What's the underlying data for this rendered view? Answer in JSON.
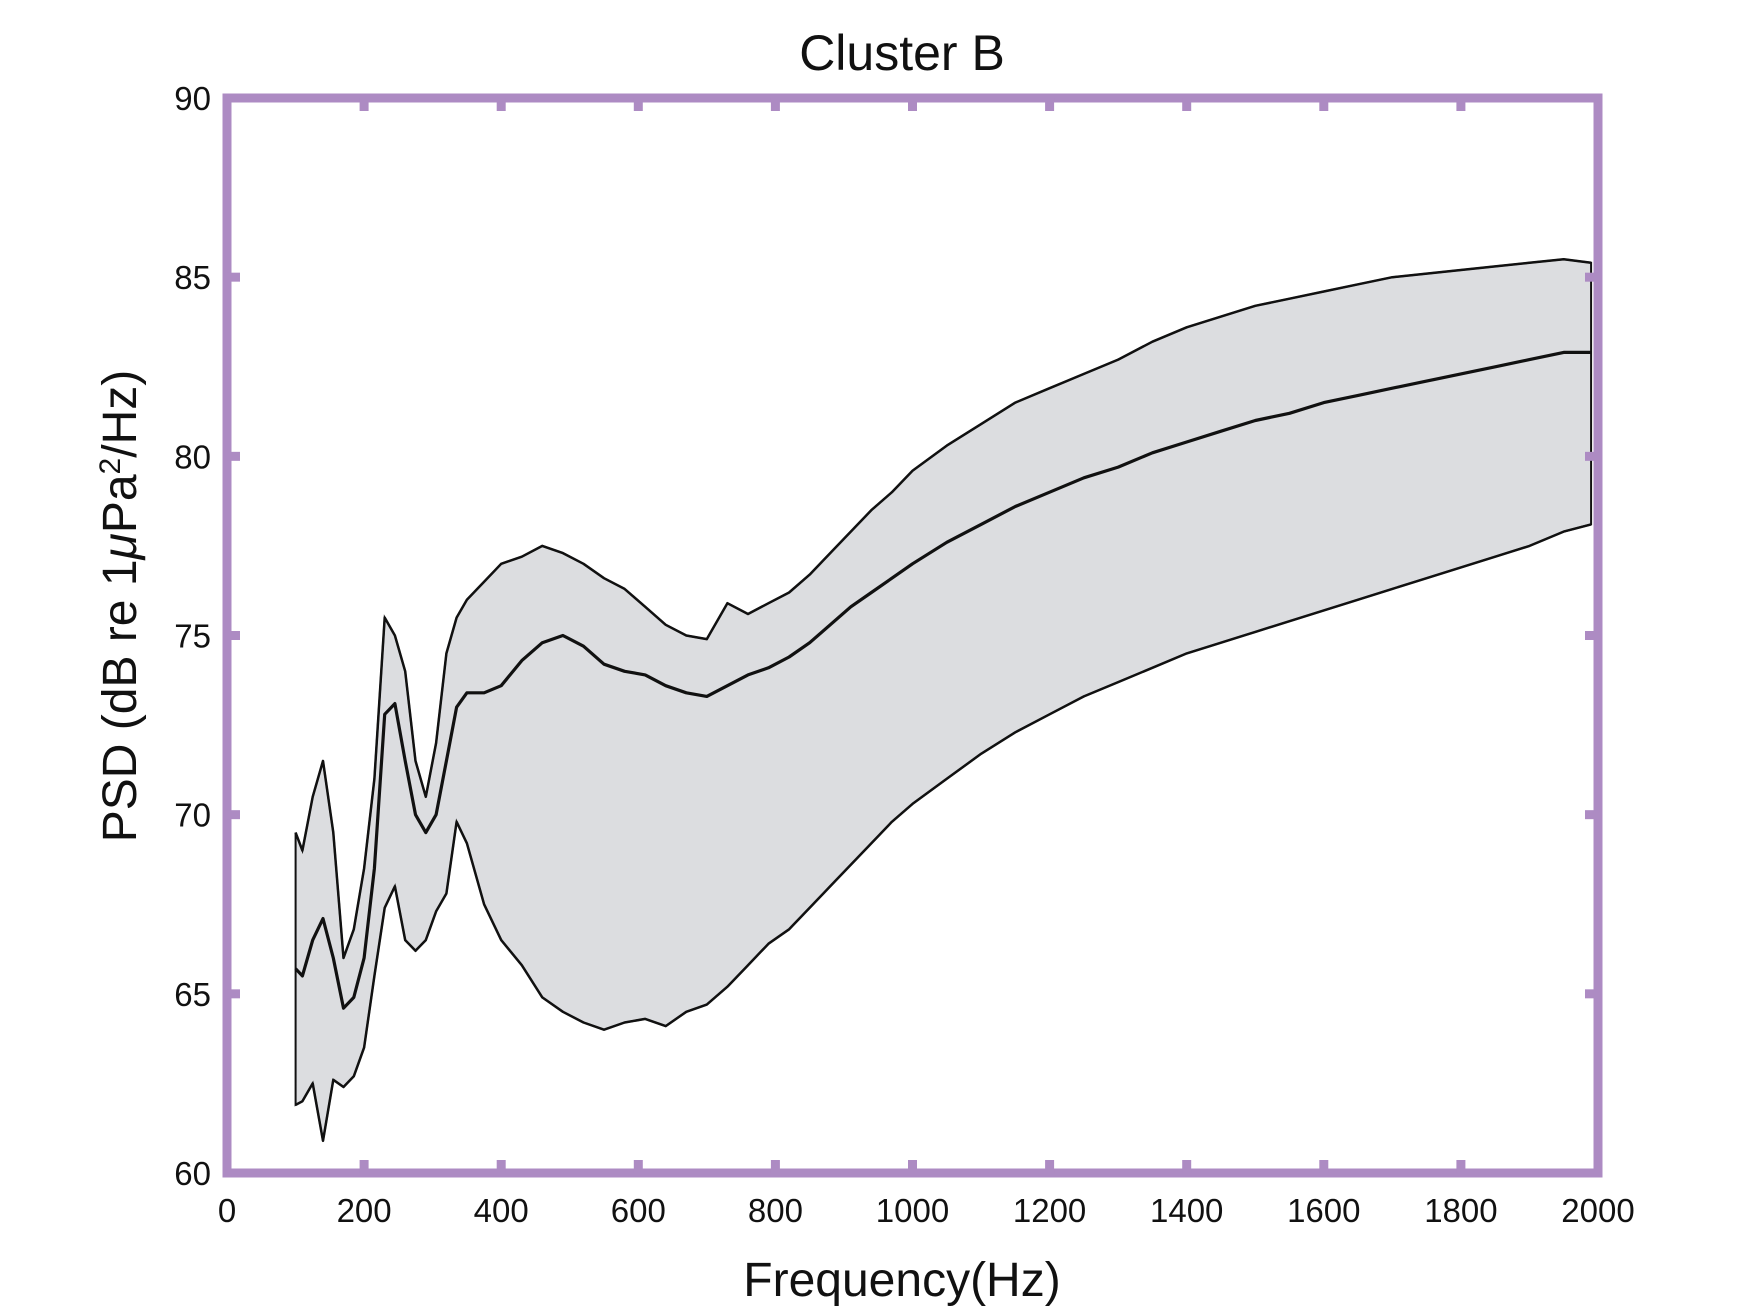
{
  "colors": {
    "frame": "#ad8bc3",
    "band_fill": "#dcdde0",
    "line": "#111111",
    "background": "#ffffff"
  },
  "chart_data": {
    "type": "area",
    "title": "Cluster B",
    "xlabel": "Frequency(Hz)",
    "ylabel": "PSD (dB re 1",
    "ylabel_mu": "μ",
    "ylabel_pa": "Pa",
    "ylabel_sup": "2",
    "ylabel_tail": "/Hz)",
    "xlim": [
      0,
      2000
    ],
    "ylim": [
      60,
      90
    ],
    "xticks": [
      0,
      200,
      400,
      600,
      800,
      1000,
      1200,
      1400,
      1600,
      1800,
      2000
    ],
    "yticks": [
      60,
      65,
      70,
      75,
      80,
      85,
      90
    ],
    "xtick_labels": [
      "0",
      "200",
      "400",
      "600",
      "800",
      "1000",
      "1200",
      "1400",
      "1600",
      "1800",
      "2000"
    ],
    "ytick_labels": [
      "60",
      "65",
      "70",
      "75",
      "80",
      "85",
      "90"
    ],
    "grid": false,
    "legend": "none",
    "series": [
      {
        "role": "upper",
        "x": [
          100,
          110,
          125,
          140,
          155,
          170,
          185,
          200,
          215,
          230,
          245,
          260,
          275,
          290,
          305,
          320,
          335,
          350,
          375,
          400,
          430,
          460,
          490,
          520,
          550,
          580,
          610,
          640,
          670,
          700,
          730,
          760,
          790,
          820,
          850,
          880,
          910,
          940,
          970,
          1000,
          1050,
          1100,
          1150,
          1200,
          1250,
          1300,
          1350,
          1400,
          1450,
          1500,
          1550,
          1600,
          1650,
          1700,
          1750,
          1800,
          1850,
          1900,
          1950,
          1990
        ],
        "y": [
          69.5,
          69.0,
          70.5,
          71.5,
          69.5,
          66.0,
          66.8,
          68.5,
          71.0,
          75.5,
          75.0,
          74.0,
          71.5,
          70.5,
          72.0,
          74.5,
          75.5,
          76.0,
          76.5,
          77.0,
          77.2,
          77.5,
          77.3,
          77.0,
          76.6,
          76.3,
          75.8,
          75.3,
          75.0,
          74.9,
          75.9,
          75.6,
          75.9,
          76.2,
          76.7,
          77.3,
          77.9,
          78.5,
          79.0,
          79.6,
          80.3,
          80.9,
          81.5,
          81.9,
          82.3,
          82.7,
          83.2,
          83.6,
          83.9,
          84.2,
          84.4,
          84.6,
          84.8,
          85.0,
          85.1,
          85.2,
          85.3,
          85.4,
          85.5,
          85.4
        ]
      },
      {
        "role": "middle",
        "x": [
          100,
          110,
          125,
          140,
          155,
          170,
          185,
          200,
          215,
          230,
          245,
          260,
          275,
          290,
          305,
          320,
          335,
          350,
          375,
          400,
          430,
          460,
          490,
          520,
          550,
          580,
          610,
          640,
          670,
          700,
          730,
          760,
          790,
          820,
          850,
          880,
          910,
          940,
          970,
          1000,
          1050,
          1100,
          1150,
          1200,
          1250,
          1300,
          1350,
          1400,
          1450,
          1500,
          1550,
          1600,
          1650,
          1700,
          1750,
          1800,
          1850,
          1900,
          1950,
          1990
        ],
        "y": [
          65.7,
          65.5,
          66.5,
          67.1,
          66.0,
          64.6,
          64.9,
          66.0,
          68.5,
          72.8,
          73.1,
          71.5,
          70.0,
          69.5,
          70.0,
          71.5,
          73.0,
          73.4,
          73.4,
          73.6,
          74.3,
          74.8,
          75.0,
          74.7,
          74.2,
          74.0,
          73.9,
          73.6,
          73.4,
          73.3,
          73.6,
          73.9,
          74.1,
          74.4,
          74.8,
          75.3,
          75.8,
          76.2,
          76.6,
          77.0,
          77.6,
          78.1,
          78.6,
          79.0,
          79.4,
          79.7,
          80.1,
          80.4,
          80.7,
          81.0,
          81.2,
          81.5,
          81.7,
          81.9,
          82.1,
          82.3,
          82.5,
          82.7,
          82.9,
          82.9
        ]
      },
      {
        "role": "lower",
        "x": [
          100,
          110,
          125,
          140,
          155,
          170,
          185,
          200,
          215,
          230,
          245,
          260,
          275,
          290,
          305,
          320,
          335,
          350,
          375,
          400,
          430,
          460,
          490,
          520,
          550,
          580,
          610,
          640,
          670,
          700,
          730,
          760,
          790,
          820,
          850,
          880,
          910,
          940,
          970,
          1000,
          1050,
          1100,
          1150,
          1200,
          1250,
          1300,
          1350,
          1400,
          1450,
          1500,
          1550,
          1600,
          1650,
          1700,
          1750,
          1800,
          1850,
          1900,
          1950,
          1990
        ],
        "y": [
          61.9,
          62.0,
          62.5,
          60.9,
          62.6,
          62.4,
          62.7,
          63.5,
          65.5,
          67.4,
          68.0,
          66.5,
          66.2,
          66.5,
          67.3,
          67.8,
          69.8,
          69.2,
          67.5,
          66.5,
          65.8,
          64.9,
          64.5,
          64.2,
          64.0,
          64.2,
          64.3,
          64.1,
          64.5,
          64.7,
          65.2,
          65.8,
          66.4,
          66.8,
          67.4,
          68.0,
          68.6,
          69.2,
          69.8,
          70.3,
          71.0,
          71.7,
          72.3,
          72.8,
          73.3,
          73.7,
          74.1,
          74.5,
          74.8,
          75.1,
          75.4,
          75.7,
          76.0,
          76.3,
          76.6,
          76.9,
          77.2,
          77.5,
          77.9,
          78.1
        ]
      }
    ]
  }
}
